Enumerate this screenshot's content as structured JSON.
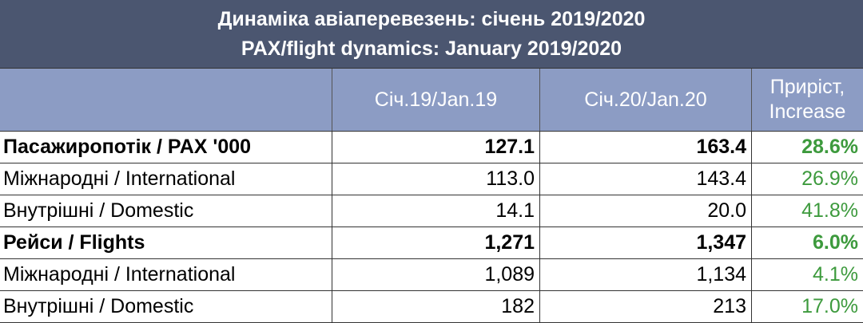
{
  "title": [
    "Динаміка авіаперевезень: січень 2019/2020",
    "PAX/flight dynamics: January 2019/2020"
  ],
  "table": {
    "columns": [
      [
        "Січ.19/Jan.19"
      ],
      [
        "Січ.20/Jan.20"
      ],
      [
        "Приріст,",
        "Increase"
      ]
    ],
    "rows": [
      {
        "bold": true,
        "cells": [
          "Пасажиропотік / PAX '000",
          "127.1",
          "163.4",
          "28.6%"
        ]
      },
      {
        "bold": false,
        "cells": [
          "Міжнародні / International",
          "113.0",
          "143.4",
          "26.9%"
        ]
      },
      {
        "bold": false,
        "cells": [
          "Внутрішні / Domestic",
          "14.1",
          "20.0",
          "41.8%"
        ]
      },
      {
        "bold": true,
        "cells": [
          "Рейси / Flights",
          "1,271",
          "1,347",
          "6.0%"
        ]
      },
      {
        "bold": false,
        "cells": [
          "Міжнародні / International",
          "1,089",
          "1,134",
          "4.1%"
        ]
      },
      {
        "bold": false,
        "cells": [
          "Внутрішні / Domestic",
          "182",
          "213",
          "17.0%"
        ]
      }
    ]
  }
}
